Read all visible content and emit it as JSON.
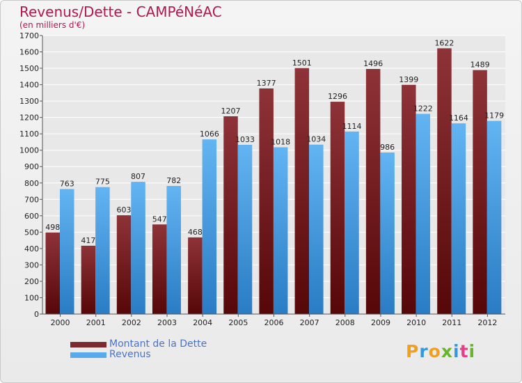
{
  "title": "Revenus/Dette - CAMPéNéAC",
  "subtitle": "(en milliers d'€)",
  "logo": {
    "text": "Proxiti",
    "letter_colors": [
      "#f0a020",
      "#3399dd",
      "#f0a020",
      "#6ab42d",
      "#3399dd",
      "#e63e8a",
      "#6ab42d"
    ]
  },
  "colors": {
    "dette": "#7c2a2f",
    "revenus": "#57aaeb",
    "title": "#b2184e",
    "legend_text": "#4a73c8"
  },
  "chart_data": {
    "type": "bar",
    "title": "Revenus/Dette - CAMPéNéAC",
    "subtitle": "(en milliers d'€)",
    "xlabel": "",
    "ylabel": "",
    "categories": [
      "2000",
      "2001",
      "2002",
      "2003",
      "2004",
      "2005",
      "2006",
      "2007",
      "2008",
      "2009",
      "2010",
      "2011",
      "2012"
    ],
    "series": [
      {
        "name": "Montant de la Dette",
        "values": [
          498,
          417,
          603,
          547,
          468,
          1207,
          1377,
          1501,
          1296,
          1496,
          1399,
          1622,
          1489
        ]
      },
      {
        "name": "Revenus",
        "values": [
          763,
          775,
          807,
          782,
          1066,
          1033,
          1018,
          1034,
          1114,
          986,
          1222,
          1164,
          1179
        ]
      }
    ],
    "ylim": [
      0,
      1700
    ],
    "yticks": [
      0,
      100,
      200,
      300,
      400,
      500,
      600,
      700,
      800,
      900,
      1000,
      1100,
      1200,
      1300,
      1400,
      1500,
      1600,
      1700
    ],
    "grid": true,
    "legend_position": "bottom-left"
  }
}
